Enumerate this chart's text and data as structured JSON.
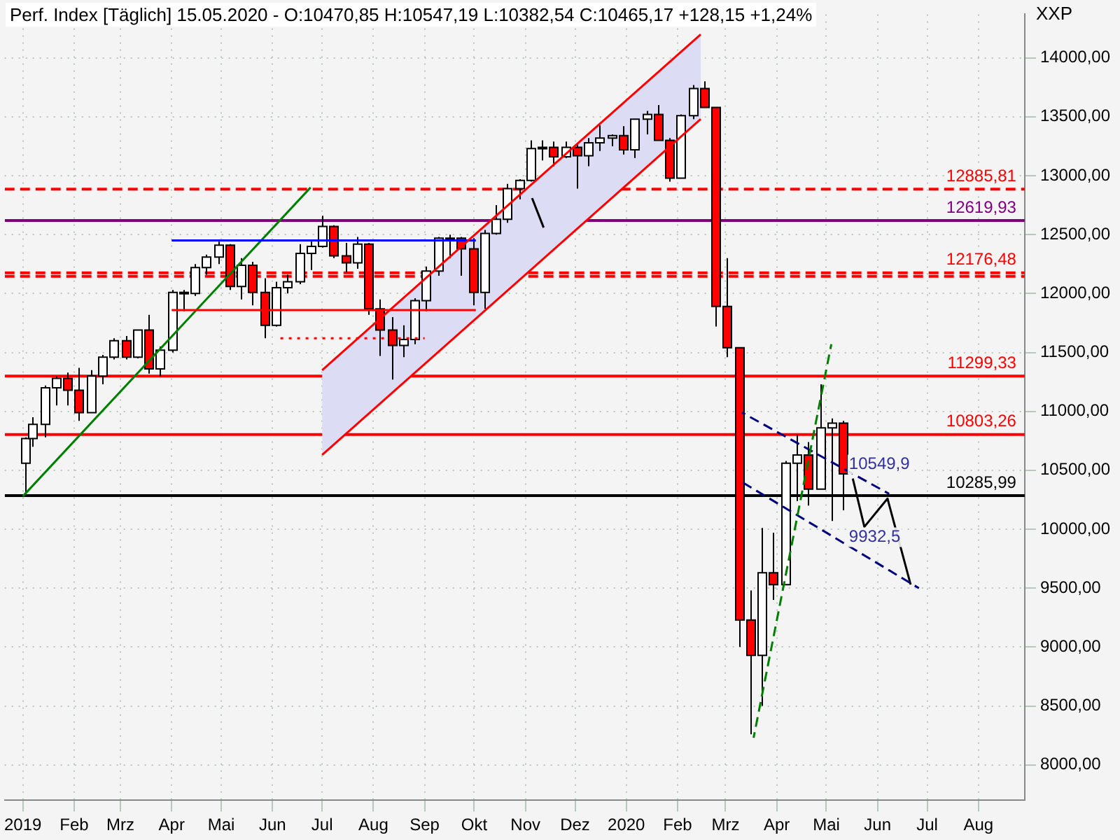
{
  "chart_data": {
    "type": "candlestick",
    "title": "Perf. Index [Täglich] 15.05.2020 - O:10470,85 H:10547,19 L:10382,54 C:10465,17 +128,15 +1,24%",
    "ylabel": "XXP",
    "x": [
      "2019-01-02",
      "2019-01-07",
      "2019-01-14",
      "2019-01-21",
      "2019-01-28",
      "2019-02-04",
      "2019-02-11",
      "2019-02-18",
      "2019-02-25",
      "2019-03-04",
      "2019-03-11",
      "2019-03-18",
      "2019-03-25",
      "2019-04-01",
      "2019-04-08",
      "2019-04-15",
      "2019-04-22",
      "2019-04-29",
      "2019-05-06",
      "2019-05-13",
      "2019-05-20",
      "2019-05-27",
      "2019-06-03",
      "2019-06-10",
      "2019-06-17",
      "2019-06-24",
      "2019-07-01",
      "2019-07-08",
      "2019-07-15",
      "2019-07-22",
      "2019-07-29",
      "2019-08-05",
      "2019-08-12",
      "2019-08-19",
      "2019-08-26",
      "2019-09-02",
      "2019-09-09",
      "2019-09-16",
      "2019-09-23",
      "2019-09-30",
      "2019-10-07",
      "2019-10-14",
      "2019-10-21",
      "2019-10-28",
      "2019-11-04",
      "2019-11-11",
      "2019-11-18",
      "2019-11-25",
      "2019-12-02",
      "2019-12-09",
      "2019-12-16",
      "2019-12-23",
      "2019-12-30",
      "2020-01-06",
      "2020-01-13",
      "2020-01-20",
      "2020-01-27",
      "2020-02-03",
      "2020-02-10",
      "2020-02-17",
      "2020-02-24",
      "2020-03-02",
      "2020-03-09",
      "2020-03-16",
      "2020-03-23",
      "2020-03-30",
      "2020-04-06",
      "2020-04-13",
      "2020-04-20",
      "2020-04-27",
      "2020-05-04",
      "2020-05-11"
    ],
    "ohlc": [
      [
        10560,
        10780,
        10280,
        10770
      ],
      [
        10770,
        10950,
        10700,
        10890
      ],
      [
        10890,
        11220,
        10780,
        11200
      ],
      [
        11200,
        11300,
        11050,
        11280
      ],
      [
        11280,
        11330,
        11050,
        11180
      ],
      [
        11180,
        11370,
        10920,
        10990
      ],
      [
        10990,
        11350,
        10990,
        11300
      ],
      [
        11300,
        11480,
        11230,
        11460
      ],
      [
        11460,
        11620,
        11440,
        11600
      ],
      [
        11600,
        11640,
        11440,
        11460
      ],
      [
        11460,
        11690,
        11450,
        11690
      ],
      [
        11690,
        11820,
        11320,
        11360
      ],
      [
        11360,
        11550,
        11300,
        11520
      ],
      [
        11520,
        12030,
        11500,
        12010
      ],
      [
        12010,
        12030,
        11850,
        12000
      ],
      [
        12000,
        12250,
        11980,
        12220
      ],
      [
        12220,
        12330,
        12160,
        12310
      ],
      [
        12310,
        12440,
        12250,
        12410
      ],
      [
        12410,
        12420,
        12030,
        12060
      ],
      [
        12060,
        12300,
        11950,
        12240
      ],
      [
        12240,
        12270,
        11900,
        12010
      ],
      [
        12010,
        12130,
        11620,
        11730
      ],
      [
        11730,
        12100,
        11720,
        12050
      ],
      [
        12050,
        12160,
        12000,
        12100
      ],
      [
        12100,
        12420,
        12080,
        12340
      ],
      [
        12340,
        12440,
        12200,
        12400
      ],
      [
        12400,
        12660,
        12390,
        12570
      ],
      [
        12570,
        12580,
        12300,
        12320
      ],
      [
        12320,
        12430,
        12180,
        12260
      ],
      [
        12260,
        12480,
        12210,
        12420
      ],
      [
        12420,
        12430,
        11820,
        11870
      ],
      [
        11870,
        11950,
        11470,
        11690
      ],
      [
        11690,
        11800,
        11270,
        11560
      ],
      [
        11560,
        11730,
        11460,
        11610
      ],
      [
        11610,
        11960,
        11570,
        11940
      ],
      [
        11940,
        12230,
        11850,
        12190
      ],
      [
        12190,
        12480,
        12150,
        12470
      ],
      [
        12470,
        12500,
        12300,
        12470
      ],
      [
        12470,
        12480,
        12150,
        12380
      ],
      [
        12380,
        12470,
        11900,
        12010
      ],
      [
        12010,
        12540,
        11870,
        12510
      ],
      [
        12510,
        12750,
        12500,
        12630
      ],
      [
        12630,
        12930,
        12600,
        12890
      ],
      [
        12890,
        12970,
        12800,
        12960
      ],
      [
        12960,
        13300,
        12950,
        13230
      ],
      [
        13230,
        13300,
        13130,
        13240
      ],
      [
        13240,
        13290,
        13080,
        13160
      ],
      [
        13160,
        13290,
        13150,
        13240
      ],
      [
        13240,
        13270,
        12890,
        13170
      ],
      [
        13170,
        13320,
        13080,
        13280
      ],
      [
        13280,
        13430,
        13210,
        13320
      ],
      [
        13320,
        13350,
        13250,
        13340
      ],
      [
        13340,
        13420,
        13180,
        13220
      ],
      [
        13220,
        13480,
        13150,
        13480
      ],
      [
        13480,
        13550,
        13350,
        13520
      ],
      [
        13520,
        13600,
        13300,
        13300
      ],
      [
        13300,
        13320,
        12950,
        12980
      ],
      [
        12980,
        13520,
        12980,
        13510
      ],
      [
        13510,
        13770,
        13480,
        13740
      ],
      [
        13740,
        13800,
        13580,
        13580
      ],
      [
        13580,
        13580,
        11720,
        11890
      ],
      [
        11890,
        12300,
        11460,
        11540
      ],
      [
        11540,
        11540,
        9000,
        9230
      ],
      [
        9230,
        9480,
        8260,
        8930
      ],
      [
        8930,
        10010,
        8500,
        9630
      ],
      [
        9630,
        9970,
        9400,
        9530
      ],
      [
        9530,
        10580,
        9530,
        10560
      ],
      [
        10560,
        10800,
        10240,
        10630
      ],
      [
        10630,
        10740,
        10200,
        10340
      ],
      [
        10340,
        11230,
        10340,
        10860
      ],
      [
        10860,
        10940,
        10070,
        10900
      ],
      [
        10900,
        10920,
        10160,
        10470
      ]
    ],
    "series": [
      {
        "type": "line",
        "color": "#dcdcf5",
        "x": [
          "2019-07-01",
          "2020-02-15"
        ],
        "lower": [
          10630,
          13480
        ],
        "upper": [
          11350,
          14200
        ],
        "values": [
          null,
          null
        ]
      },
      {
        "type": "line",
        "color": "#ff0000",
        "x": [
          "2019-07-01",
          "2020-02-15"
        ],
        "values": [
          10630,
          13480
        ]
      },
      {
        "type": "line",
        "color": "#ff0000",
        "x": [
          "2019-07-01",
          "2020-02-15"
        ],
        "values": [
          11350,
          14200
        ]
      },
      {
        "type": "line",
        "color": "#0000ff",
        "x": [
          "2019-04-01",
          "2019-10-02"
        ],
        "values": [
          12450,
          12450
        ]
      },
      {
        "type": "line",
        "color": "#ff0000",
        "x": [
          "2019-04-01",
          "2019-10-02"
        ],
        "values": [
          11860,
          11860
        ]
      },
      {
        "type": "line",
        "color": "#ff0000",
        "line_style": "dotted",
        "x": [
          "2019-06-03",
          "2019-09-01"
        ],
        "values": [
          11620,
          11620
        ]
      },
      {
        "type": "line",
        "color": "#008000",
        "x": [
          "2019-01-01",
          "2019-06-24"
        ],
        "values": [
          10280,
          12900
        ]
      },
      {
        "type": "line",
        "color": "#008000",
        "line_style": "dashed",
        "x": [
          "2020-03-18",
          "2020-05-04"
        ],
        "values": [
          8230,
          11570
        ]
      },
      {
        "type": "line",
        "color": "#000080",
        "line_style": "dashed",
        "x": [
          "2020-03-11",
          "2020-06-08"
        ],
        "values": [
          10990,
          10300
        ]
      },
      {
        "type": "line",
        "color": "#000080",
        "line_style": "dashed",
        "x": [
          "2020-03-11",
          "2020-06-26"
        ],
        "values": [
          10400,
          9500
        ]
      },
      {
        "type": "line",
        "color": "#000000",
        "x": [
          "2019-11-05",
          "2019-11-12"
        ],
        "values": [
          12810,
          12560
        ]
      },
      {
        "type": "line",
        "color": "#000000",
        "x": [
          "2020-05-17",
          "2020-05-24",
          "2020-06-07",
          "2020-06-21"
        ],
        "values": [
          10430,
          10020,
          10260,
          9530
        ]
      }
    ],
    "ref_lines": [
      {
        "axis": "y",
        "value": 12885.81,
        "label": "12885,81",
        "color": "#ff0000",
        "line_style": "dashed"
      },
      {
        "axis": "y",
        "value": 12619.93,
        "label": "12619,93",
        "color": "#800080",
        "line_style": "solid"
      },
      {
        "axis": "y",
        "value": 12176.48,
        "label": "12176,48",
        "color": "#ff0000",
        "line_style": "dashed"
      },
      {
        "axis": "y",
        "value": 12146,
        "label": null,
        "color": "#ff0000",
        "line_style": "dashed"
      },
      {
        "axis": "y",
        "value": 11299.33,
        "label": "11299,33",
        "color": "#ff0000",
        "line_style": "solid"
      },
      {
        "axis": "y",
        "value": 10803.26,
        "label": "10803,26",
        "color": "#ff0000",
        "line_style": "solid"
      },
      {
        "axis": "y",
        "value": 10285.99,
        "label": "10285,99",
        "color": "#000000",
        "line_style": "solid"
      }
    ],
    "annotations": [
      {
        "text": "10549,9",
        "x": "2020-05-13",
        "y": 10549.9
      },
      {
        "text": "9932,5",
        "x": "2020-05-13",
        "y": 9932.5
      }
    ],
    "xlim": [
      "2018-12-21",
      "2020-08-29"
    ],
    "xticks": [
      {
        "value": "2019-01-01",
        "label": "2019"
      },
      {
        "value": "2019-02-01",
        "label": "Feb"
      },
      {
        "value": "2019-03-01",
        "label": "Mrz"
      },
      {
        "value": "2019-04-01",
        "label": "Apr"
      },
      {
        "value": "2019-05-01",
        "label": "Mai"
      },
      {
        "value": "2019-06-01",
        "label": "Jun"
      },
      {
        "value": "2019-07-01",
        "label": "Jul"
      },
      {
        "value": "2019-08-01",
        "label": "Aug"
      },
      {
        "value": "2019-09-01",
        "label": "Sep"
      },
      {
        "value": "2019-10-01",
        "label": "Okt"
      },
      {
        "value": "2019-11-01",
        "label": "Nov"
      },
      {
        "value": "2019-12-01",
        "label": "Dez"
      },
      {
        "value": "2020-01-01",
        "label": "2020"
      },
      {
        "value": "2020-02-01",
        "label": "Feb"
      },
      {
        "value": "2020-03-01",
        "label": "Mrz"
      },
      {
        "value": "2020-04-01",
        "label": "Apr"
      },
      {
        "value": "2020-05-01",
        "label": "Mai"
      },
      {
        "value": "2020-06-01",
        "label": "Jun"
      },
      {
        "value": "2020-07-01",
        "label": "Jul"
      },
      {
        "value": "2020-08-01",
        "label": "Aug"
      }
    ],
    "ylim": [
      7700,
      14370
    ],
    "yticks": [
      {
        "value": 8000,
        "label": "8000,00"
      },
      {
        "value": 8500,
        "label": "8500,00"
      },
      {
        "value": 9000,
        "label": "9000,00"
      },
      {
        "value": 9500,
        "label": "9500,00"
      },
      {
        "value": 10000,
        "label": "10000,00"
      },
      {
        "value": 10500,
        "label": "10500,00"
      },
      {
        "value": 11000,
        "label": "11000,00"
      },
      {
        "value": 11500,
        "label": "11500,00"
      },
      {
        "value": 12000,
        "label": "12000,00"
      },
      {
        "value": 12500,
        "label": "12500,00"
      },
      {
        "value": 13000,
        "label": "13000,00"
      },
      {
        "value": 13500,
        "label": "13500,00"
      },
      {
        "value": 14000,
        "label": "14000,00"
      }
    ],
    "grid": true,
    "legend": false,
    "marker": "none"
  }
}
